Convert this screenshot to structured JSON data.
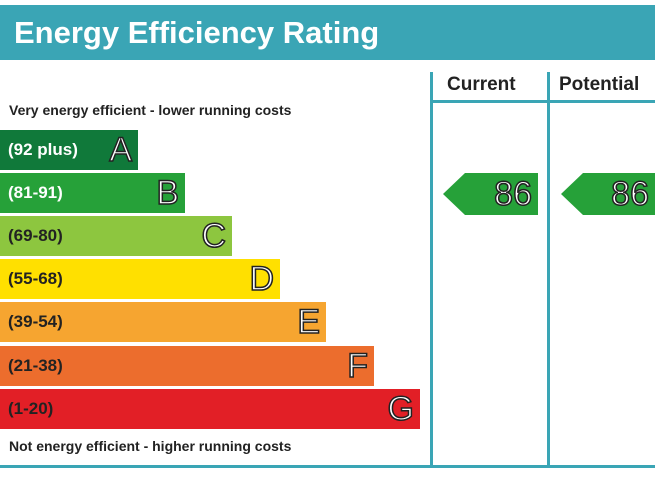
{
  "title": "Energy Efficiency Rating",
  "columns": {
    "current": "Current",
    "potential": "Potential"
  },
  "top_note": "Very energy efficient - lower running costs",
  "bottom_note": "Not energy efficient - higher running costs",
  "bands": [
    {
      "range": "(92 plus)",
      "letter": "A",
      "color": "#10793a"
    },
    {
      "range": "(81-91)",
      "letter": "B",
      "color": "#26a139"
    },
    {
      "range": "(69-80)",
      "letter": "C",
      "color": "#8dc63f"
    },
    {
      "range": "(55-68)",
      "letter": "D",
      "color": "#ffe000"
    },
    {
      "range": "(39-54)",
      "letter": "E",
      "color": "#f6a530"
    },
    {
      "range": "(21-38)",
      "letter": "F",
      "color": "#ec6d2d"
    },
    {
      "range": "(1-20)",
      "letter": "G",
      "color": "#e21f26"
    }
  ],
  "ratings": {
    "current": "86",
    "potential": "86",
    "band_color": "#26a139"
  },
  "accent_color": "#3aa5b5"
}
